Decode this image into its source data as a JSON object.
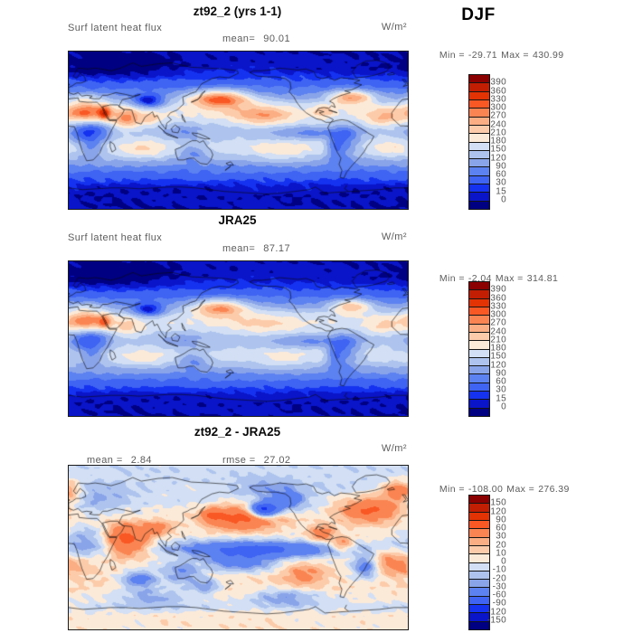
{
  "page": {
    "background": "#ffffff",
    "season_label": "DJF"
  },
  "labels": {
    "min": "Min =",
    "max": "Max =",
    "mean_tight": "mean=",
    "mean": "mean =",
    "rmse": "rmse ="
  },
  "palette_top_to_bottom": [
    "#8b0000",
    "#c21e03",
    "#e33305",
    "#f95723",
    "#fa8552",
    "#fbae84",
    "#fcccaa",
    "#fcead8",
    "#d2dff4",
    "#aec4ee",
    "#8aa4ea",
    "#5c81f0",
    "#3f63f2",
    "#1432f0",
    "#0a14c8",
    "#000082"
  ],
  "chart_data": [
    {
      "type": "heatmap",
      "map": "global equirectangular, lon 0-360E Pacific-centered, lat 90N-90S, filled contours",
      "title": "zt92_2 (yrs 1-1)",
      "variable": "Surf latent heat flux",
      "units": "W/m²",
      "stats": {
        "mean": "90.01",
        "min": "-29.71",
        "max": "430.99"
      },
      "colorbar": {
        "levels_top_to_bottom": [
          "390",
          "360",
          "330",
          "300",
          "270",
          "240",
          "210",
          "180",
          "150",
          "120",
          "90",
          "60",
          "30",
          "15",
          "0"
        ]
      },
      "field": {
        "noise": 7,
        "zonal": [
          [
            -90,
            2
          ],
          [
            -75,
            3
          ],
          [
            -65,
            8
          ],
          [
            -55,
            35
          ],
          [
            -45,
            70
          ],
          [
            -35,
            115
          ],
          [
            -25,
            160
          ],
          [
            -18,
            172
          ],
          [
            -10,
            150
          ],
          [
            -3,
            133
          ],
          [
            3,
            140
          ],
          [
            10,
            163
          ],
          [
            18,
            183
          ],
          [
            25,
            172
          ],
          [
            32,
            138
          ],
          [
            40,
            95
          ],
          [
            50,
            55
          ],
          [
            60,
            25
          ],
          [
            70,
            8
          ],
          [
            80,
            4
          ],
          [
            90,
            3
          ]
        ],
        "blobs": [
          [
            160,
            36,
            22,
            7,
            200
          ],
          [
            205,
            17,
            22,
            8,
            90
          ],
          [
            300,
            38,
            16,
            6,
            160
          ],
          [
            335,
            15,
            14,
            8,
            70
          ],
          [
            62,
            13,
            11,
            8,
            110
          ],
          [
            88,
            13,
            7,
            5,
            50
          ],
          [
            18,
            37,
            12,
            4,
            50
          ],
          [
            18,
            20,
            14,
            8,
            150
          ],
          [
            38,
            20,
            5,
            6,
            140
          ],
          [
            80,
            -22,
            18,
            8,
            45
          ],
          [
            225,
            -25,
            20,
            8,
            40
          ],
          [
            343,
            -20,
            12,
            7,
            35
          ],
          [
            22,
            -2,
            14,
            12,
            -115
          ],
          [
            25,
            -22,
            8,
            8,
            -50
          ],
          [
            85,
            33,
            12,
            6,
            -125
          ],
          [
            295,
            -12,
            11,
            14,
            -80
          ],
          [
            132,
            -25,
            12,
            8,
            -65
          ],
          [
            255,
            -3,
            25,
            5,
            -55
          ],
          [
            283,
            -20,
            7,
            10,
            -75
          ],
          [
            120,
            -3,
            13,
            7,
            -45
          ],
          [
            270,
            22,
            8,
            5,
            55
          ],
          [
            45,
            72,
            40,
            10,
            -25
          ]
        ]
      }
    },
    {
      "type": "heatmap",
      "map": "global equirectangular, lon 0-360E Pacific-centered, lat 90N-90S, filled contours",
      "title": "JRA25",
      "variable": "Surf latent heat flux",
      "units": "W/m²",
      "stats": {
        "mean": "87.17",
        "min": "-2.04",
        "max": "314.81"
      },
      "colorbar": {
        "levels_top_to_bottom": [
          "390",
          "360",
          "330",
          "300",
          "270",
          "240",
          "210",
          "180",
          "150",
          "120",
          "90",
          "60",
          "30",
          "15",
          "0"
        ]
      },
      "field": {
        "noise": 6,
        "zonal": [
          [
            -90,
            2
          ],
          [
            -75,
            3
          ],
          [
            -65,
            8
          ],
          [
            -55,
            35
          ],
          [
            -45,
            70
          ],
          [
            -35,
            112
          ],
          [
            -25,
            155
          ],
          [
            -18,
            168
          ],
          [
            -10,
            148
          ],
          [
            -3,
            132
          ],
          [
            3,
            138
          ],
          [
            10,
            160
          ],
          [
            18,
            178
          ],
          [
            25,
            168
          ],
          [
            32,
            135
          ],
          [
            40,
            92
          ],
          [
            50,
            52
          ],
          [
            60,
            24
          ],
          [
            70,
            8
          ],
          [
            80,
            4
          ],
          [
            90,
            3
          ]
        ],
        "blobs": [
          [
            160,
            36,
            20,
            7,
            160
          ],
          [
            205,
            17,
            26,
            9,
            45
          ],
          [
            300,
            38,
            15,
            6,
            130
          ],
          [
            335,
            15,
            14,
            8,
            45
          ],
          [
            62,
            13,
            11,
            8,
            55
          ],
          [
            18,
            37,
            12,
            4,
            45
          ],
          [
            18,
            20,
            14,
            8,
            140
          ],
          [
            38,
            20,
            5,
            6,
            110
          ],
          [
            80,
            -22,
            18,
            8,
            35
          ],
          [
            225,
            -25,
            20,
            8,
            30
          ],
          [
            22,
            -2,
            14,
            12,
            -105
          ],
          [
            25,
            -22,
            8,
            8,
            -45
          ],
          [
            85,
            33,
            12,
            6,
            -120
          ],
          [
            295,
            -12,
            11,
            14,
            -75
          ],
          [
            132,
            -25,
            12,
            8,
            -60
          ],
          [
            255,
            -3,
            25,
            5,
            -50
          ],
          [
            283,
            -20,
            7,
            10,
            -70
          ],
          [
            120,
            -3,
            13,
            7,
            -40
          ],
          [
            45,
            72,
            40,
            10,
            -25
          ]
        ]
      }
    },
    {
      "type": "heatmap",
      "map": "global equirectangular difference map (model minus reference)",
      "title": "zt92_2 - JRA25",
      "units": "W/m²",
      "stats": {
        "mean": "2.84",
        "rmse": "27.02",
        "min": "-108.00",
        "max": "276.39"
      },
      "colorbar": {
        "levels_top_to_bottom": [
          "150",
          "120",
          "90",
          "60",
          "30",
          "20",
          "10",
          "0",
          "-10",
          "-20",
          "-30",
          "-60",
          "-90",
          "-120",
          "-150"
        ]
      },
      "field": {
        "noise": 5,
        "zonal": [
          [
            -90,
            6
          ],
          [
            -75,
            6
          ],
          [
            -65,
            -5
          ],
          [
            -55,
            4
          ],
          [
            -45,
            9
          ],
          [
            -30,
            9
          ],
          [
            -15,
            4
          ],
          [
            -5,
            -3
          ],
          [
            0,
            -5
          ],
          [
            5,
            -3
          ],
          [
            15,
            4
          ],
          [
            25,
            6
          ],
          [
            35,
            3
          ],
          [
            45,
            -2
          ],
          [
            55,
            -4
          ],
          [
            70,
            -6
          ],
          [
            90,
            -7
          ]
        ],
        "blobs": [
          [
            185,
            33,
            26,
            9,
            70
          ],
          [
            207,
            41,
            11,
            6,
            -120
          ],
          [
            152,
            36,
            8,
            5,
            40
          ],
          [
            232,
            52,
            14,
            7,
            -45
          ],
          [
            200,
            -2,
            55,
            6,
            -65
          ],
          [
            182,
            -16,
            25,
            7,
            -50
          ],
          [
            62,
            8,
            16,
            12,
            70
          ],
          [
            95,
            22,
            10,
            6,
            30
          ],
          [
            320,
            42,
            22,
            9,
            65
          ],
          [
            352,
            62,
            14,
            8,
            50
          ],
          [
            20,
            8,
            16,
            12,
            -26
          ],
          [
            315,
            -22,
            10,
            9,
            -45
          ],
          [
            268,
            15,
            10,
            6,
            40
          ],
          [
            290,
            3,
            8,
            6,
            40
          ],
          [
            75,
            -35,
            14,
            8,
            -45
          ],
          [
            120,
            -28,
            14,
            9,
            -38
          ],
          [
            145,
            -42,
            12,
            7,
            -32
          ],
          [
            250,
            -30,
            15,
            8,
            30
          ],
          [
            340,
            -15,
            12,
            8,
            28
          ],
          [
            30,
            55,
            25,
            10,
            -18
          ],
          [
            210,
            66,
            25,
            8,
            -20
          ],
          [
            230,
            -55,
            25,
            7,
            -30
          ],
          [
            90,
            -55,
            25,
            7,
            -25
          ],
          [
            0,
            -20,
            15,
            8,
            20
          ]
        ]
      }
    }
  ]
}
